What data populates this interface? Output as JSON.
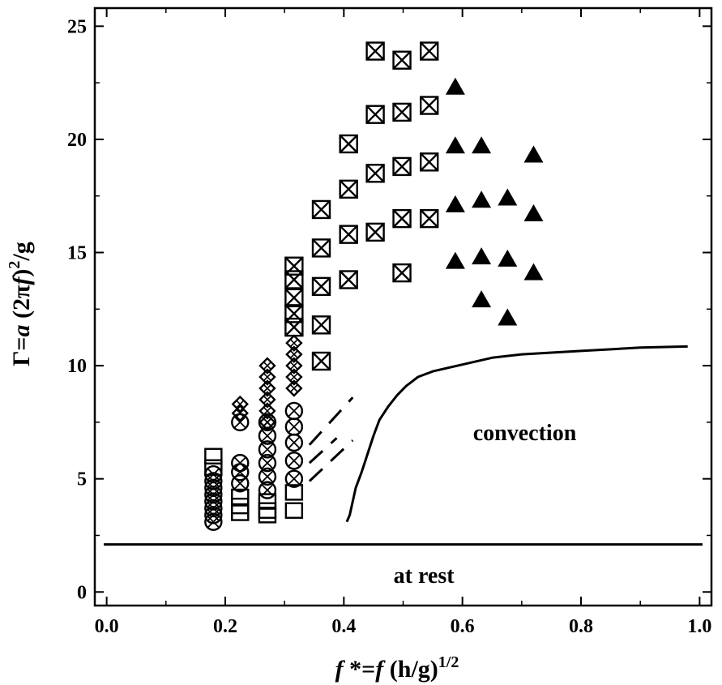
{
  "chart_data": {
    "type": "scatter",
    "xlabel": {
      "pre": "f",
      "mid": " *=",
      "f": "f",
      "post": " (h/g)",
      "sup": "1/2"
    },
    "ylabel": {
      "pre": "Γ=",
      "a": "a",
      "mid": " (2π",
      "f": "f",
      "post": ")",
      "sup": "2",
      "tail": "/g"
    },
    "xlim": [
      -0.02,
      1.02
    ],
    "ylim": [
      -0.6,
      25.8
    ],
    "xticks": [
      0.0,
      0.2,
      0.4,
      0.6,
      0.8,
      1.0
    ],
    "xtick_labels": [
      "0.0",
      "0.2",
      "0.4",
      "0.6",
      "0.8",
      "1.0"
    ],
    "yticks": [
      0,
      5,
      10,
      15,
      20,
      25
    ],
    "ytick_labels": [
      "0",
      "5",
      "10",
      "15",
      "20",
      "25"
    ],
    "annotations": [
      {
        "text": "convection",
        "x": 0.705,
        "y": 6.7
      },
      {
        "text": "at rest",
        "x": 0.535,
        "y": 0.4
      }
    ],
    "series": [
      {
        "marker": "boxed-x",
        "points": [
          [
            0.316,
            14.4
          ],
          [
            0.316,
            13.8
          ],
          [
            0.316,
            13.0
          ],
          [
            0.316,
            12.3
          ],
          [
            0.316,
            11.7
          ],
          [
            0.362,
            16.9
          ],
          [
            0.362,
            15.2
          ],
          [
            0.362,
            13.5
          ],
          [
            0.362,
            11.8
          ],
          [
            0.362,
            10.2
          ],
          [
            0.408,
            19.8
          ],
          [
            0.408,
            17.8
          ],
          [
            0.408,
            15.8
          ],
          [
            0.408,
            13.8
          ],
          [
            0.453,
            23.9
          ],
          [
            0.453,
            21.1
          ],
          [
            0.453,
            18.5
          ],
          [
            0.453,
            15.9
          ],
          [
            0.498,
            23.5
          ],
          [
            0.498,
            21.2
          ],
          [
            0.498,
            18.8
          ],
          [
            0.498,
            16.5
          ],
          [
            0.498,
            14.1
          ],
          [
            0.544,
            23.9
          ],
          [
            0.544,
            21.5
          ],
          [
            0.544,
            19.0
          ],
          [
            0.544,
            16.5
          ]
        ]
      },
      {
        "marker": "triangle",
        "points": [
          [
            0.588,
            22.3
          ],
          [
            0.588,
            19.7
          ],
          [
            0.588,
            17.1
          ],
          [
            0.588,
            14.6
          ],
          [
            0.632,
            19.7
          ],
          [
            0.632,
            17.3
          ],
          [
            0.632,
            14.8
          ],
          [
            0.632,
            12.9
          ],
          [
            0.676,
            17.4
          ],
          [
            0.676,
            14.7
          ],
          [
            0.676,
            12.1
          ],
          [
            0.72,
            19.3
          ],
          [
            0.72,
            16.7
          ],
          [
            0.72,
            14.1
          ]
        ]
      },
      {
        "marker": "diamond-x",
        "points": [
          [
            0.225,
            8.3
          ],
          [
            0.225,
            7.9
          ],
          [
            0.271,
            10.0
          ],
          [
            0.271,
            9.5
          ],
          [
            0.271,
            9.0
          ],
          [
            0.271,
            8.5
          ],
          [
            0.271,
            8.0
          ],
          [
            0.271,
            7.5
          ],
          [
            0.316,
            11.0
          ],
          [
            0.316,
            10.5
          ],
          [
            0.316,
            10.0
          ],
          [
            0.316,
            9.5
          ],
          [
            0.316,
            9.0
          ]
        ]
      },
      {
        "marker": "circle-x",
        "points": [
          [
            0.18,
            5.2
          ],
          [
            0.18,
            4.9
          ],
          [
            0.18,
            4.6
          ],
          [
            0.18,
            4.3
          ],
          [
            0.18,
            4.0
          ],
          [
            0.18,
            3.7
          ],
          [
            0.18,
            3.4
          ],
          [
            0.18,
            3.1
          ],
          [
            0.225,
            7.5
          ],
          [
            0.225,
            5.7
          ],
          [
            0.225,
            5.3
          ],
          [
            0.225,
            4.8
          ],
          [
            0.271,
            7.5
          ],
          [
            0.271,
            6.9
          ],
          [
            0.271,
            6.3
          ],
          [
            0.271,
            5.7
          ],
          [
            0.271,
            5.1
          ],
          [
            0.271,
            4.5
          ],
          [
            0.316,
            8.0
          ],
          [
            0.316,
            7.3
          ],
          [
            0.316,
            6.6
          ],
          [
            0.316,
            5.8
          ],
          [
            0.316,
            5.0
          ]
        ]
      },
      {
        "marker": "square",
        "points": [
          [
            0.18,
            6.0
          ],
          [
            0.18,
            5.5
          ],
          [
            0.225,
            4.2
          ],
          [
            0.225,
            3.8
          ],
          [
            0.225,
            3.5
          ],
          [
            0.271,
            4.0
          ],
          [
            0.271,
            3.6
          ],
          [
            0.271,
            3.4
          ],
          [
            0.316,
            4.4
          ],
          [
            0.316,
            3.6
          ]
        ]
      }
    ],
    "lines": [
      {
        "name": "at rest",
        "style": "solid",
        "points": [
          [
            -0.005,
            2.1
          ],
          [
            1.005,
            2.1
          ]
        ]
      },
      {
        "name": "convection",
        "style": "solid",
        "points": [
          [
            0.405,
            3.1
          ],
          [
            0.41,
            3.4
          ],
          [
            0.415,
            4.0
          ],
          [
            0.42,
            4.6
          ],
          [
            0.43,
            5.3
          ],
          [
            0.44,
            6.1
          ],
          [
            0.45,
            6.9
          ],
          [
            0.46,
            7.6
          ],
          [
            0.475,
            8.2
          ],
          [
            0.49,
            8.7
          ],
          [
            0.505,
            9.1
          ],
          [
            0.525,
            9.5
          ],
          [
            0.55,
            9.75
          ],
          [
            0.6,
            10.05
          ],
          [
            0.65,
            10.35
          ],
          [
            0.7,
            10.5
          ],
          [
            0.8,
            10.65
          ],
          [
            0.9,
            10.8
          ],
          [
            0.98,
            10.85
          ]
        ]
      },
      {
        "style": "dashed",
        "points": [
          [
            0.342,
            6.5
          ],
          [
            0.415,
            8.6
          ]
        ]
      },
      {
        "style": "dashed",
        "points": [
          [
            0.342,
            5.7
          ],
          [
            0.388,
            6.8
          ]
        ]
      },
      {
        "style": "dashed",
        "points": [
          [
            0.342,
            4.9
          ],
          [
            0.415,
            6.7
          ]
        ]
      }
    ]
  }
}
